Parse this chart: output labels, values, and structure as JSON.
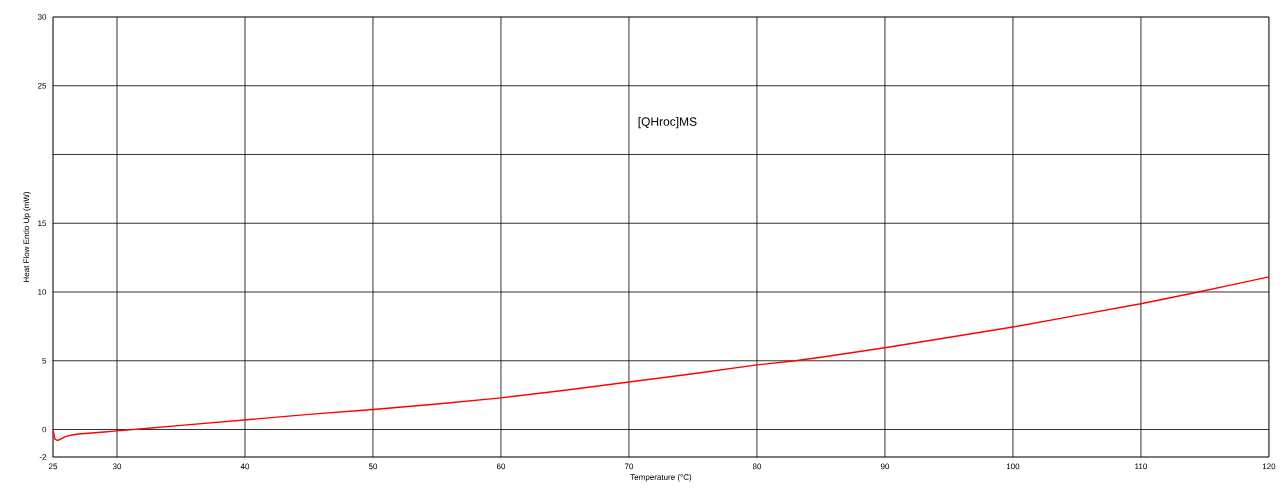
{
  "chart_data": {
    "type": "line",
    "xlabel": "Temperature (°C)",
    "ylabel": "Heat Flow Endo Up (mW)",
    "annotations": [
      "[QHroc]MS"
    ],
    "xlim": [
      25,
      120
    ],
    "xticks": [
      25,
      30,
      40,
      50,
      60,
      70,
      80,
      90,
      100,
      110,
      120
    ],
    "ylim": [
      -2,
      30
    ],
    "yticks": [
      -2,
      0,
      5,
      10,
      15,
      {
        "value": 20,
        "label": null
      },
      25,
      30
    ],
    "grid": true,
    "marker": "none",
    "line_style": "solid",
    "series": [
      {
        "color": "#ff0000",
        "x": [
          25,
          25.15,
          25.35,
          25.7,
          26,
          26.5,
          27,
          28,
          29,
          30,
          32,
          35,
          40,
          45,
          50,
          55,
          60,
          65,
          70,
          75,
          80,
          83,
          85,
          90,
          95,
          100,
          105,
          110,
          114.5,
          117,
          120
        ],
        "values": [
          0,
          -0.7,
          -0.8,
          -0.65,
          -0.5,
          -0.4,
          -0.33,
          -0.25,
          -0.18,
          -0.1,
          0.05,
          0.3,
          0.7,
          1.1,
          1.45,
          1.85,
          2.3,
          2.85,
          3.45,
          4.05,
          4.7,
          5.0,
          5.25,
          5.95,
          6.7,
          7.45,
          8.3,
          9.15,
          10.0,
          10.5,
          11.1
        ]
      }
    ]
  }
}
